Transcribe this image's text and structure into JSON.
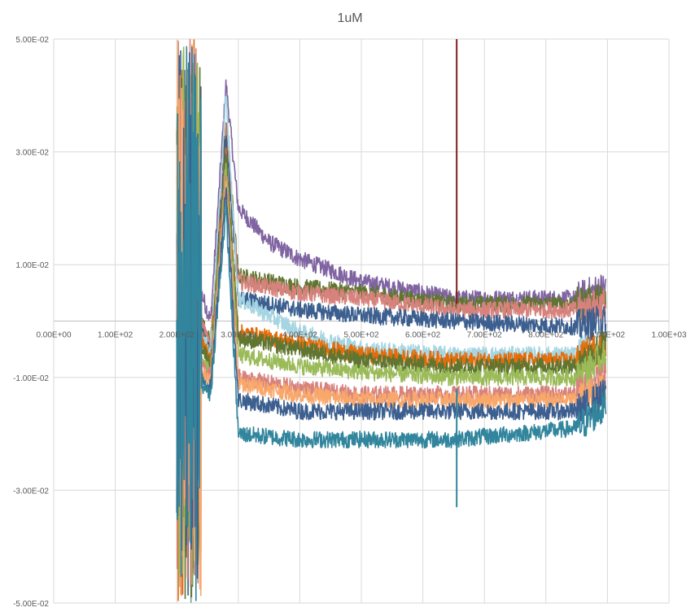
{
  "chart_data": {
    "type": "line",
    "title": "1uM",
    "xlabel": "",
    "ylabel": "",
    "xlim": [
      0,
      1000
    ],
    "ylim": [
      -0.05,
      0.05
    ],
    "x_ticks": [
      "0.00E+00",
      "1.00E+02",
      "2.00E+02",
      "3.00E+02",
      "4.00E+02",
      "5.00E+02",
      "6.00E+02",
      "7.00E+02",
      "8.00E+02",
      "9.00E+02",
      "1.00E+03"
    ],
    "y_ticks": [
      "5.00E-02",
      "3.00E-02",
      "1.00E-02",
      "-1.00E-02",
      "-3.00E-02",
      "-5.00E-02"
    ],
    "y_tick_values": [
      0.05,
      0.03,
      0.01,
      -0.01,
      -0.03,
      -0.05
    ],
    "grid": true,
    "legend": "none",
    "noise_amplitude": 0.0015,
    "series": [
      {
        "name": "purple",
        "color": "#8064A2",
        "points": [
          [
            240,
            0.005
          ],
          [
            255,
            0.0
          ],
          [
            280,
            0.042
          ],
          [
            300,
            0.02
          ],
          [
            350,
            0.014
          ],
          [
            400,
            0.011
          ],
          [
            500,
            0.007
          ],
          [
            650,
            0.004
          ],
          [
            850,
            0.004
          ],
          [
            898,
            0.006
          ]
        ]
      },
      {
        "name": "olive-upper",
        "color": "#5F7530",
        "points": [
          [
            240,
            0.0
          ],
          [
            255,
            -0.004
          ],
          [
            280,
            0.035
          ],
          [
            300,
            0.008
          ],
          [
            400,
            0.006
          ],
          [
            500,
            0.005
          ],
          [
            650,
            0.003
          ],
          [
            850,
            0.003
          ],
          [
            898,
            0.004
          ]
        ]
      },
      {
        "name": "salmon-upper",
        "color": "#D7827D",
        "points": [
          [
            240,
            0.0
          ],
          [
            255,
            -0.005
          ],
          [
            280,
            0.034
          ],
          [
            300,
            0.007
          ],
          [
            400,
            0.005
          ],
          [
            500,
            0.004
          ],
          [
            650,
            0.002
          ],
          [
            850,
            0.002
          ],
          [
            898,
            0.003
          ]
        ]
      },
      {
        "name": "blue-upper",
        "color": "#3C5F8F",
        "points": [
          [
            240,
            -0.002
          ],
          [
            255,
            -0.006
          ],
          [
            280,
            0.033
          ],
          [
            300,
            0.004
          ],
          [
            400,
            0.002
          ],
          [
            500,
            0.001
          ],
          [
            650,
            0.0
          ],
          [
            850,
            -0.001
          ],
          [
            898,
            0.0
          ]
        ]
      },
      {
        "name": "light-blue",
        "color": "#A5D5E2",
        "points": [
          [
            240,
            -0.002
          ],
          [
            255,
            -0.006
          ],
          [
            280,
            0.04
          ],
          [
            300,
            0.004
          ],
          [
            400,
            -0.002
          ],
          [
            500,
            -0.005
          ],
          [
            650,
            -0.006
          ],
          [
            850,
            -0.006
          ],
          [
            898,
            -0.004
          ]
        ]
      },
      {
        "name": "orange",
        "color": "#E46C0A",
        "points": [
          [
            240,
            -0.003
          ],
          [
            255,
            -0.007
          ],
          [
            280,
            0.03
          ],
          [
            300,
            -0.002
          ],
          [
            400,
            -0.004
          ],
          [
            500,
            -0.006
          ],
          [
            650,
            -0.007
          ],
          [
            850,
            -0.007
          ],
          [
            898,
            -0.004
          ]
        ]
      },
      {
        "name": "olive-lower",
        "color": "#5F7530",
        "points": [
          [
            240,
            -0.004
          ],
          [
            255,
            -0.008
          ],
          [
            280,
            0.03
          ],
          [
            300,
            -0.003
          ],
          [
            400,
            -0.005
          ],
          [
            500,
            -0.007
          ],
          [
            650,
            -0.008
          ],
          [
            850,
            -0.008
          ],
          [
            898,
            -0.004
          ]
        ]
      },
      {
        "name": "light-green",
        "color": "#9BBB59",
        "points": [
          [
            240,
            -0.006
          ],
          [
            255,
            -0.009
          ],
          [
            280,
            0.028
          ],
          [
            300,
            -0.006
          ],
          [
            400,
            -0.008
          ],
          [
            500,
            -0.009
          ],
          [
            650,
            -0.01
          ],
          [
            850,
            -0.01
          ],
          [
            898,
            -0.006
          ]
        ]
      },
      {
        "name": "salmon-lower",
        "color": "#D7827D",
        "points": [
          [
            240,
            -0.008
          ],
          [
            255,
            -0.01
          ],
          [
            280,
            0.026
          ],
          [
            300,
            -0.01
          ],
          [
            400,
            -0.012
          ],
          [
            500,
            -0.013
          ],
          [
            650,
            -0.013
          ],
          [
            850,
            -0.013
          ],
          [
            898,
            -0.01
          ]
        ]
      },
      {
        "name": "peach",
        "color": "#F9A86B",
        "points": [
          [
            240,
            -0.009
          ],
          [
            255,
            -0.011
          ],
          [
            280,
            0.025
          ],
          [
            300,
            -0.011
          ],
          [
            400,
            -0.013
          ],
          [
            500,
            -0.014
          ],
          [
            650,
            -0.014
          ],
          [
            850,
            -0.014
          ],
          [
            898,
            -0.012
          ]
        ]
      },
      {
        "name": "blue-lower",
        "color": "#3C5F8F",
        "points": [
          [
            240,
            -0.01
          ],
          [
            255,
            -0.012
          ],
          [
            280,
            0.024
          ],
          [
            300,
            -0.014
          ],
          [
            400,
            -0.016
          ],
          [
            500,
            -0.016
          ],
          [
            650,
            -0.016
          ],
          [
            850,
            -0.016
          ],
          [
            898,
            -0.013
          ]
        ]
      },
      {
        "name": "teal",
        "color": "#31859C",
        "points": [
          [
            240,
            -0.011
          ],
          [
            255,
            -0.013
          ],
          [
            280,
            0.02
          ],
          [
            300,
            -0.02
          ],
          [
            400,
            -0.021
          ],
          [
            500,
            -0.021
          ],
          [
            650,
            -0.021
          ],
          [
            850,
            -0.019
          ],
          [
            898,
            -0.015
          ]
        ]
      }
    ],
    "spikes": [
      {
        "name": "dark-red-spike",
        "color": "#7F1F1F",
        "x": 655,
        "y_from": 0.05,
        "y_to": 0.003
      },
      {
        "name": "teal-spike",
        "color": "#31859C",
        "x": 655,
        "y_from": -0.012,
        "y_to": -0.033
      }
    ],
    "burst_region": [
      200,
      240
    ]
  }
}
